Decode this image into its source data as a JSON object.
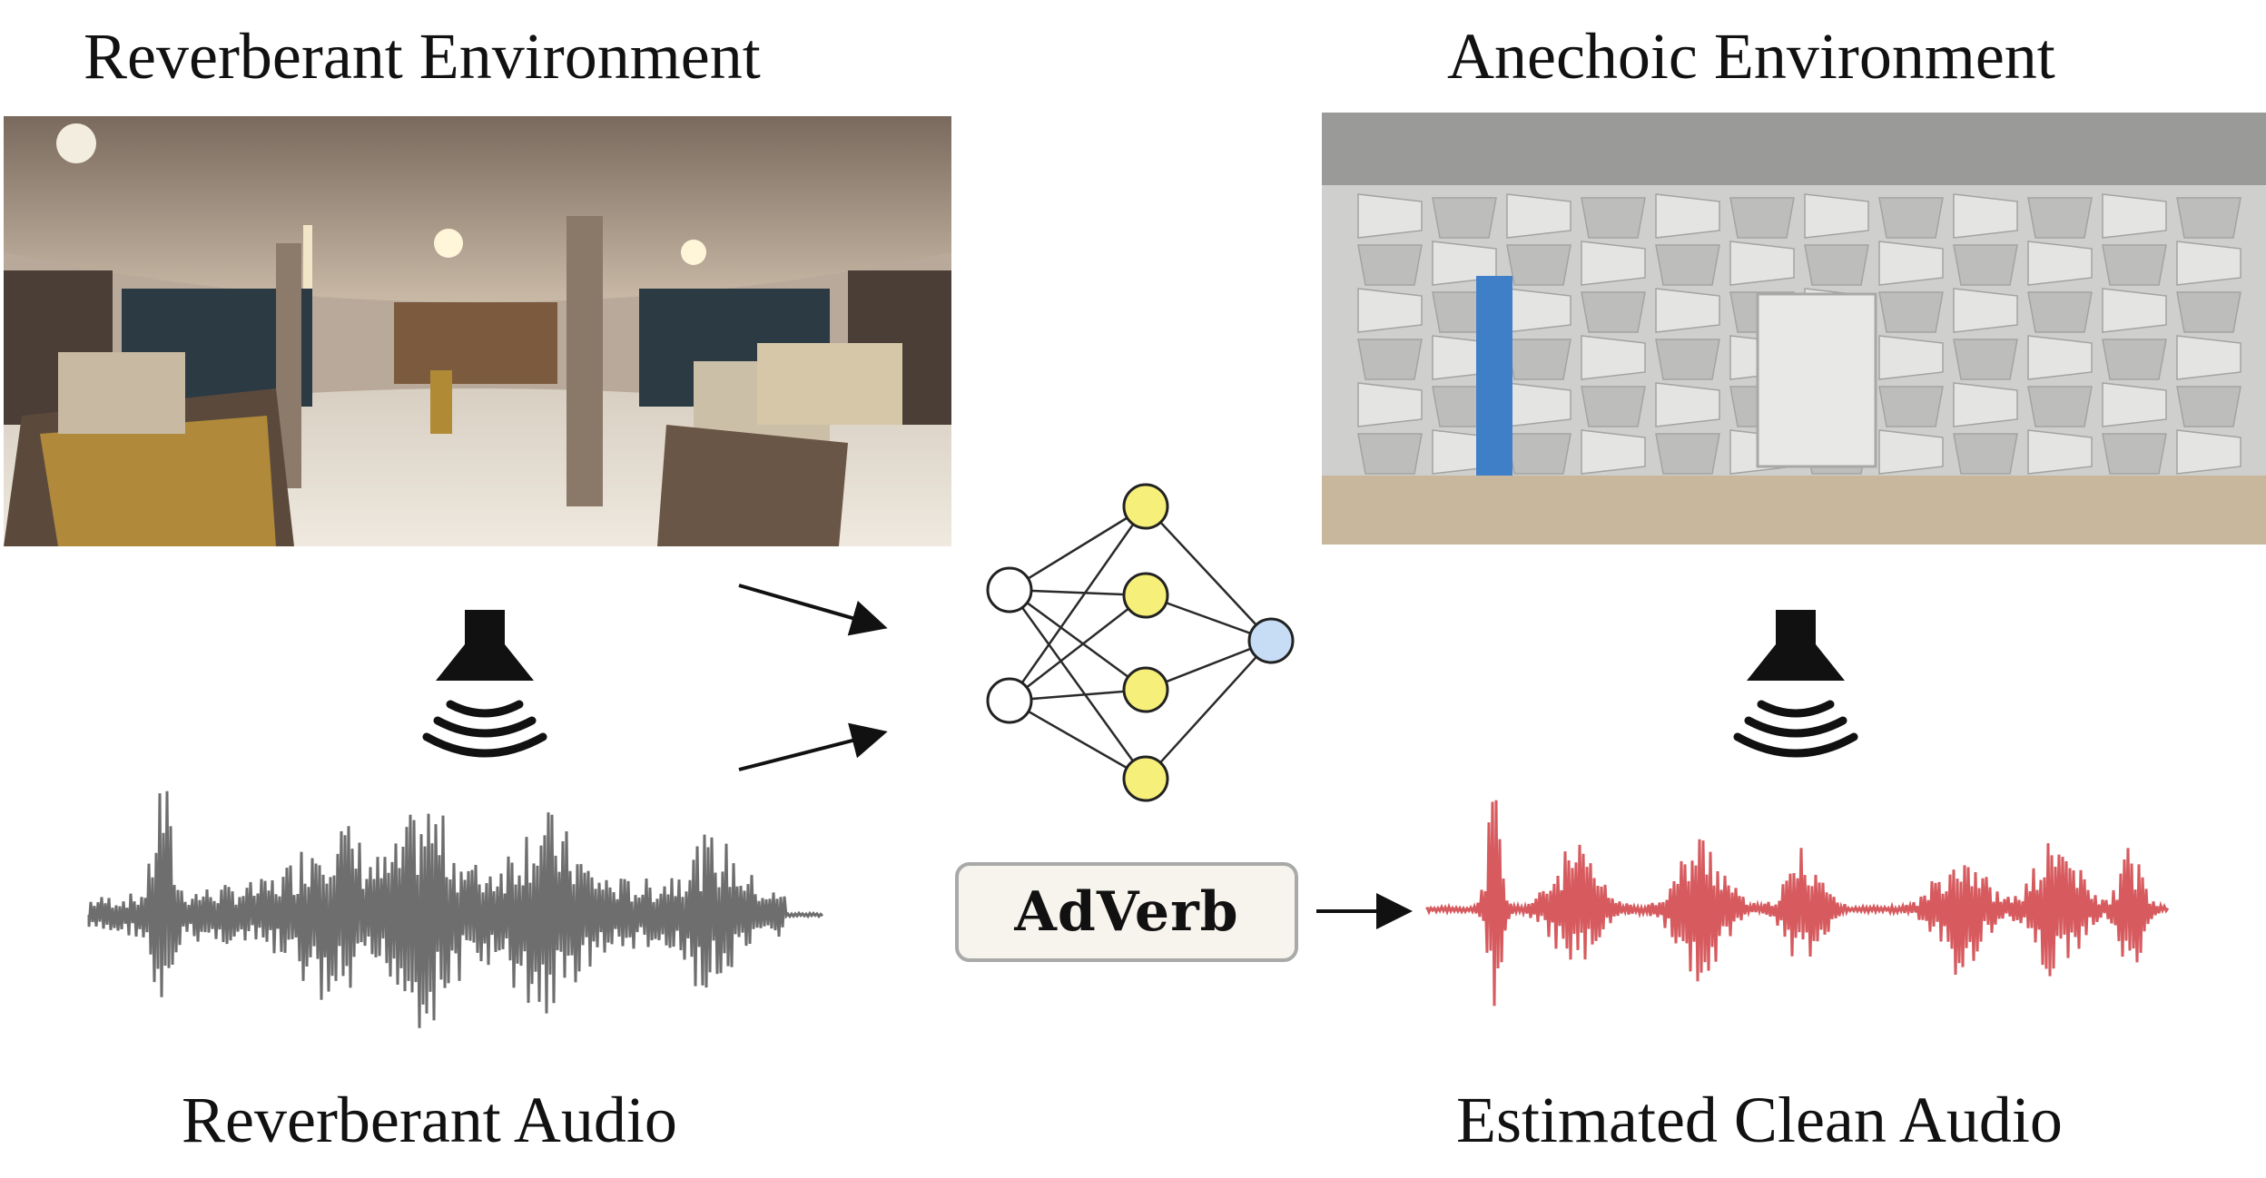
{
  "labels": {
    "reverberant_environment": "Reverberant Environment",
    "anechoic_environment": "Anechoic Environment",
    "reverberant_audio": "Reverberant Audio",
    "estimated_clean_audio": "Estimated Clean Audio",
    "model_name": "AdVerb"
  },
  "images": {
    "reverberant_scene": "panorama-hotel-lobby",
    "anechoic_scene": "anechoic-chamber-foam-wedges"
  },
  "icons": {
    "left_speaker": "speaker-icon",
    "right_speaker": "speaker-icon"
  },
  "network": {
    "input_nodes": 2,
    "hidden_nodes": 4,
    "output_nodes": 1,
    "input_color": "#ffffff",
    "hidden_color": "#f6f07a",
    "output_color": "#c7dcf5"
  },
  "colors": {
    "reverberant_waveform": "#6e6e6e",
    "clean_waveform": "#d65a5e",
    "box_fill": "#f6f4ec",
    "box_border": "#a9a9a9"
  }
}
